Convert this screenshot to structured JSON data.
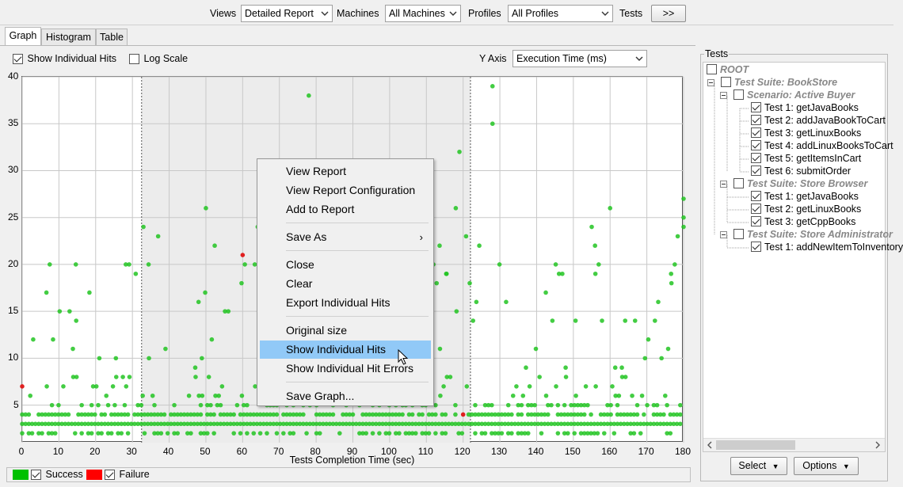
{
  "toolbar": {
    "views_label": "Views",
    "views_value": "Detailed Report",
    "machines_label": "Machines",
    "machines_value": "All Machines",
    "profiles_label": "Profiles",
    "profiles_value": "All Profiles",
    "tests_label": "Tests",
    "tests_button": ">>"
  },
  "tabs": [
    {
      "label": "Graph"
    },
    {
      "label": "Histogram"
    },
    {
      "label": "Table"
    }
  ],
  "options": {
    "show_individual_hits": "Show Individual Hits",
    "log_scale": "Log Scale",
    "y_axis_label": "Y Axis",
    "y_axis_value": "Execution Time (ms)"
  },
  "chart_data": {
    "type": "scatter",
    "xlabel": "Tests Completion Time (sec)",
    "xlim": [
      0,
      180
    ],
    "ylim": [
      1,
      40
    ],
    "xticks": [
      "0",
      "10",
      "20",
      "30",
      "40",
      "50",
      "60",
      "70",
      "80",
      "90",
      "100",
      "110",
      "120",
      "130",
      "140",
      "150",
      "160",
      "170",
      "180"
    ],
    "yticks": [
      "40",
      "35",
      "30",
      "25",
      "20",
      "15",
      "10",
      "5"
    ],
    "selection_range": [
      32.5,
      122
    ],
    "series": [
      {
        "name": "Success",
        "color": "#22c422"
      },
      {
        "name": "Failure",
        "color": "#e02020"
      }
    ]
  },
  "legend": {
    "success_label": "Success",
    "failure_label": "Failure",
    "success_color": "#00c000",
    "failure_color": "#ff0000"
  },
  "context_menu": {
    "items": [
      {
        "label": "View Report"
      },
      {
        "label": "View Report Configuration"
      },
      {
        "label": "Add to Report"
      },
      {
        "label": "Save As"
      },
      {
        "label": "Close"
      },
      {
        "label": "Clear"
      },
      {
        "label": "Export Individual Hits"
      },
      {
        "label": "Original size"
      },
      {
        "label": "Show Individual Hits"
      },
      {
        "label": "Show Individual Hit Errors"
      },
      {
        "label": "Save Graph..."
      }
    ]
  },
  "tests_panel": {
    "title": "Tests",
    "root": "ROOT",
    "suite1": "Test Suite: BookStore",
    "scenario1": "Scenario: Active Buyer",
    "s1_tests": [
      "Test 1: getJavaBooks",
      "Test 2: addJavaBookToCart",
      "Test 3: getLinuxBooks",
      "Test 4: addLinuxBooksToCart",
      "Test 5: getItemsInCart",
      "Test 6: submitOrder"
    ],
    "suite2": "Test Suite: Store Browser",
    "s2_tests": [
      "Test 1: getJavaBooks",
      "Test 2: getLinuxBooks",
      "Test 3: getCppBooks"
    ],
    "suite3": "Test Suite: Store Administrator",
    "s3_tests": [
      "Test 1: addNewItemToInventory"
    ],
    "select_button": "Select",
    "options_button": "Options"
  }
}
